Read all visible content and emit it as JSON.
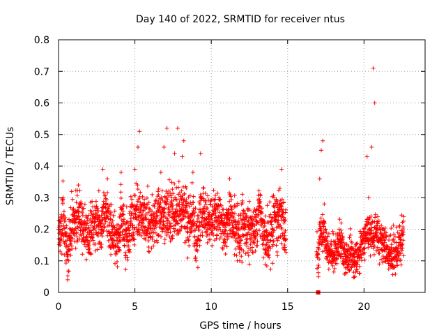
{
  "chart_data": {
    "type": "scatter",
    "title": "Day 140 of 2022, SRMTID for receiver ntus",
    "xlabel": "GPS time / hours",
    "ylabel": "SRMTID / TECUs",
    "xlim": [
      0,
      24
    ],
    "ylim": [
      0,
      0.8
    ],
    "x_ticks": [
      0,
      5,
      10,
      15,
      20
    ],
    "x_tick_labels": [
      "0",
      "5",
      "10",
      "15",
      "20"
    ],
    "y_ticks": [
      0,
      0.1,
      0.2,
      0.3,
      0.4,
      0.5,
      0.6,
      0.7,
      0.8
    ],
    "y_tick_labels": [
      "0",
      "0.1",
      "0.2",
      "0.3",
      "0.4",
      "0.5",
      "0.6",
      "0.7",
      "0.8"
    ],
    "grid": true,
    "marker": "+",
    "color": "#ff0000",
    "series": [
      {
        "name": "SRMTID",
        "marker_color": "#ff0000",
        "segments": [
          {
            "x_start": 0.0,
            "x_end": 14.9,
            "baseline": 0.2,
            "spread": 0.07
          },
          {
            "x_start": 16.9,
            "x_end": 22.6,
            "baseline": 0.13,
            "spread": 0.05
          }
        ],
        "points": [
          {
            "x": 0.1,
            "y": 0.13
          },
          {
            "x": 0.3,
            "y": 0.3
          },
          {
            "x": 0.5,
            "y": 0.1
          },
          {
            "x": 0.6,
            "y": 0.04
          },
          {
            "x": 0.8,
            "y": 0.2
          },
          {
            "x": 1.0,
            "y": 0.24
          },
          {
            "x": 1.3,
            "y": 0.34
          },
          {
            "x": 1.6,
            "y": 0.22
          },
          {
            "x": 2.0,
            "y": 0.15
          },
          {
            "x": 2.4,
            "y": 0.26
          },
          {
            "x": 2.8,
            "y": 0.2
          },
          {
            "x": 2.9,
            "y": 0.39
          },
          {
            "x": 3.2,
            "y": 0.36
          },
          {
            "x": 3.5,
            "y": 0.18
          },
          {
            "x": 3.9,
            "y": 0.13
          },
          {
            "x": 4.1,
            "y": 0.38
          },
          {
            "x": 4.4,
            "y": 0.11
          },
          {
            "x": 4.7,
            "y": 0.22
          },
          {
            "x": 5.0,
            "y": 0.39
          },
          {
            "x": 5.2,
            "y": 0.46
          },
          {
            "x": 5.3,
            "y": 0.51
          },
          {
            "x": 5.6,
            "y": 0.27
          },
          {
            "x": 6.0,
            "y": 0.21
          },
          {
            "x": 6.3,
            "y": 0.25
          },
          {
            "x": 6.7,
            "y": 0.38
          },
          {
            "x": 6.9,
            "y": 0.46
          },
          {
            "x": 7.1,
            "y": 0.52
          },
          {
            "x": 7.4,
            "y": 0.3
          },
          {
            "x": 7.6,
            "y": 0.44
          },
          {
            "x": 7.8,
            "y": 0.52
          },
          {
            "x": 8.1,
            "y": 0.43
          },
          {
            "x": 8.2,
            "y": 0.48
          },
          {
            "x": 8.5,
            "y": 0.24
          },
          {
            "x": 8.8,
            "y": 0.38
          },
          {
            "x": 9.0,
            "y": 0.1
          },
          {
            "x": 9.3,
            "y": 0.44
          },
          {
            "x": 9.5,
            "y": 0.33
          },
          {
            "x": 9.9,
            "y": 0.24
          },
          {
            "x": 10.2,
            "y": 0.27
          },
          {
            "x": 10.5,
            "y": 0.3
          },
          {
            "x": 10.9,
            "y": 0.16
          },
          {
            "x": 11.2,
            "y": 0.36
          },
          {
            "x": 11.6,
            "y": 0.22
          },
          {
            "x": 11.9,
            "y": 0.14
          },
          {
            "x": 12.1,
            "y": 0.26
          },
          {
            "x": 12.5,
            "y": 0.2
          },
          {
            "x": 12.8,
            "y": 0.18
          },
          {
            "x": 13.2,
            "y": 0.31
          },
          {
            "x": 13.6,
            "y": 0.12
          },
          {
            "x": 14.0,
            "y": 0.2
          },
          {
            "x": 14.3,
            "y": 0.28
          },
          {
            "x": 14.5,
            "y": 0.33
          },
          {
            "x": 14.6,
            "y": 0.39
          },
          {
            "x": 14.8,
            "y": 0.15
          },
          {
            "x": 17.0,
            "y": 0.0
          },
          {
            "x": 17.1,
            "y": 0.36
          },
          {
            "x": 17.2,
            "y": 0.45
          },
          {
            "x": 17.3,
            "y": 0.48
          },
          {
            "x": 17.4,
            "y": 0.28
          },
          {
            "x": 17.6,
            "y": 0.16
          },
          {
            "x": 17.9,
            "y": 0.1
          },
          {
            "x": 18.2,
            "y": 0.13
          },
          {
            "x": 18.5,
            "y": 0.22
          },
          {
            "x": 18.8,
            "y": 0.06
          },
          {
            "x": 19.1,
            "y": 0.14
          },
          {
            "x": 19.4,
            "y": 0.05
          },
          {
            "x": 19.7,
            "y": 0.11
          },
          {
            "x": 20.0,
            "y": 0.2
          },
          {
            "x": 20.2,
            "y": 0.43
          },
          {
            "x": 20.3,
            "y": 0.3
          },
          {
            "x": 20.5,
            "y": 0.46
          },
          {
            "x": 20.6,
            "y": 0.71
          },
          {
            "x": 20.7,
            "y": 0.6
          },
          {
            "x": 20.9,
            "y": 0.24
          },
          {
            "x": 21.2,
            "y": 0.18
          },
          {
            "x": 21.5,
            "y": 0.14
          },
          {
            "x": 21.8,
            "y": 0.09
          },
          {
            "x": 22.1,
            "y": 0.12
          },
          {
            "x": 22.4,
            "y": 0.18
          },
          {
            "x": 22.6,
            "y": 0.24
          }
        ]
      }
    ]
  }
}
